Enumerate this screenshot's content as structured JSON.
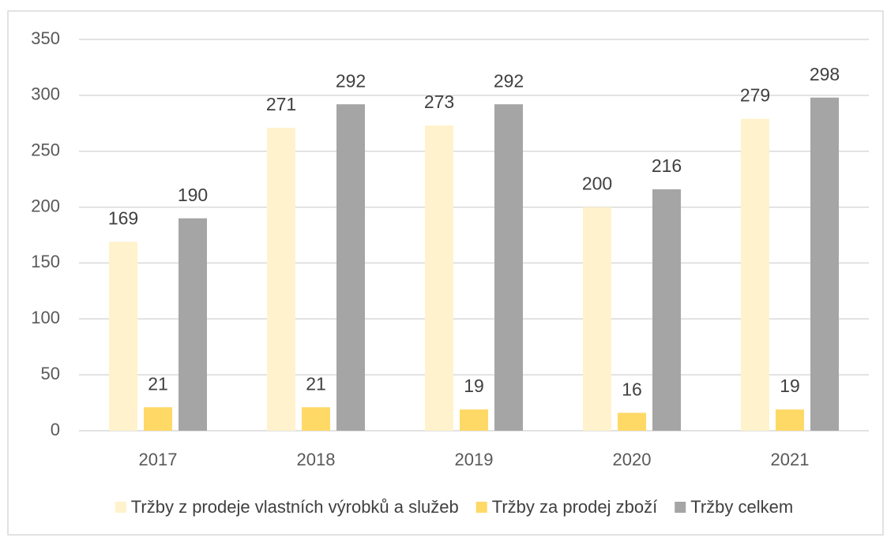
{
  "chart_data": {
    "type": "bar",
    "categories": [
      "2017",
      "2018",
      "2019",
      "2020",
      "2021"
    ],
    "series": [
      {
        "name": "Tržby z prodeje vlastních výrobků a služeb",
        "color": "#fff2cc",
        "values": [
          169,
          271,
          273,
          200,
          279
        ]
      },
      {
        "name": "Tržby za prodej zboží",
        "color": "#ffd966",
        "values": [
          21,
          21,
          19,
          16,
          19
        ]
      },
      {
        "name": "Tržby celkem",
        "color": "#a5a5a5",
        "values": [
          190,
          292,
          292,
          216,
          298
        ]
      }
    ],
    "ylim": [
      0,
      350
    ],
    "yticks": [
      0,
      50,
      100,
      150,
      200,
      250,
      300,
      350
    ],
    "grid": true,
    "legend": "bottom"
  }
}
